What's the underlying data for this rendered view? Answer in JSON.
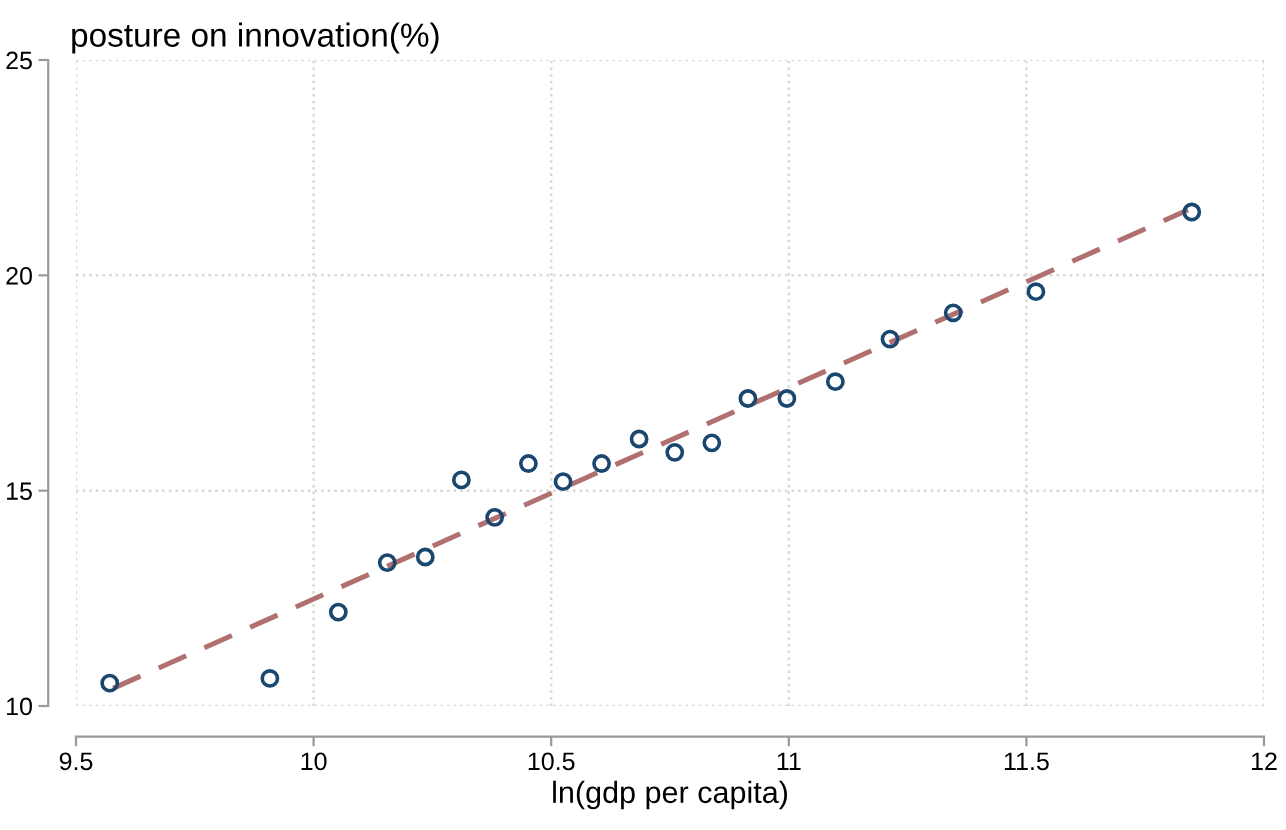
{
  "chart_data": {
    "type": "scatter",
    "xlabel": "ln(gdp per capita)",
    "ylabel": "posture on innovation(%)",
    "xlim": [
      9.5,
      12
    ],
    "ylim": [
      10,
      25
    ],
    "xticks": [
      9.5,
      10,
      10.5,
      11,
      11.5,
      12
    ],
    "yticks": [
      10,
      15,
      20,
      25
    ],
    "grid": true,
    "series": [
      {
        "color": "#1a476f",
        "marker": "circle",
        "x": [
          9.571,
          9.908,
          10.052,
          10.155,
          10.235,
          10.311,
          10.381,
          10.452,
          10.525,
          10.606,
          10.685,
          10.76,
          10.838,
          10.914,
          10.996,
          11.098,
          11.213,
          11.346,
          11.52,
          11.848
        ],
        "values": [
          10.53,
          10.64,
          12.18,
          13.33,
          13.46,
          15.25,
          14.38,
          15.63,
          15.21,
          15.63,
          16.2,
          15.89,
          16.11,
          17.14,
          17.14,
          17.53,
          18.52,
          19.13,
          19.62,
          21.47
        ]
      },
      {
        "type": "line",
        "color": "#b07070",
        "line_style": "dashed",
        "marker": "none",
        "x": [
          9.578,
          10.5,
          11.84
        ],
        "values": [
          10.41,
          14.94,
          21.52
        ]
      }
    ]
  }
}
